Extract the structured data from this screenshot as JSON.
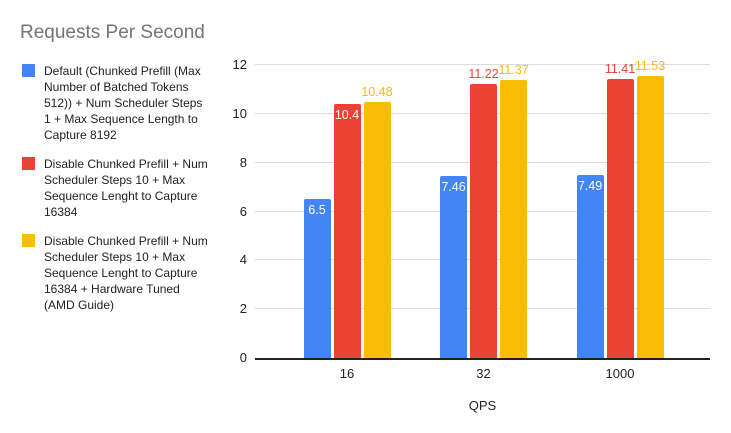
{
  "chart_data": {
    "type": "bar",
    "title": "Requests Per Second",
    "xlabel": "QPS",
    "ylabel": "",
    "categories": [
      "16",
      "32",
      "1000"
    ],
    "ylim": [
      0,
      12
    ],
    "yticks": [
      0,
      2,
      4,
      6,
      8,
      10,
      12
    ],
    "grid": true,
    "legend_position": "left",
    "series": [
      {
        "name": "Default (Chunked Prefill (Max Number of Batched Tokens 512)) + Num Scheduler Steps 1 + Max Sequence Length to Capture 8192",
        "color": "#4285F4",
        "values": [
          6.5,
          7.46,
          7.49
        ],
        "labels": [
          "6.5",
          "7.46",
          "7.49"
        ],
        "label_placement": [
          "inside",
          "inside",
          "inside"
        ]
      },
      {
        "name": "Disable Chunked Prefill + Num Scheduler Steps 10 + Max Sequence Lenght to Capture 16384",
        "color": "#EA4335",
        "values": [
          10.4,
          11.22,
          11.41
        ],
        "labels": [
          "10.4",
          "11.22",
          "11.41"
        ],
        "label_placement": [
          "inside",
          "above",
          "above"
        ]
      },
      {
        "name": "Disable Chunked Prefill + Num Scheduler Steps 10 + Max Sequence Lenght to Capture 16384 + Hardware Tuned (AMD Guide)",
        "color": "#FBBC04",
        "values": [
          10.48,
          11.37,
          11.53
        ],
        "labels": [
          "10.48",
          "11.37",
          "11.53"
        ],
        "label_placement": [
          "above",
          "above",
          "above"
        ]
      }
    ],
    "colors": {
      "title_text": "#757575",
      "axis_text": "#222222",
      "gridline": "#dcdcdc",
      "baseline": "#212121"
    }
  }
}
